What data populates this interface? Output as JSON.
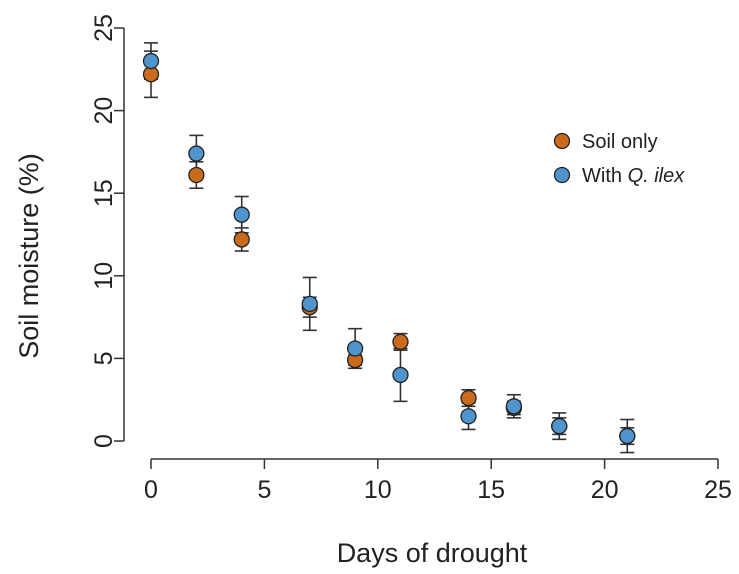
{
  "chart_data": {
    "type": "scatter",
    "title": "",
    "xlabel": "Days of drought",
    "ylabel": "Soil moisture (%)",
    "xlim": [
      0,
      25
    ],
    "ylim": [
      0,
      25
    ],
    "xticks": [
      0,
      5,
      10,
      15,
      20,
      25
    ],
    "yticks": [
      0,
      5,
      10,
      15,
      20,
      25
    ],
    "grid": false,
    "legend_position": "right",
    "series": [
      {
        "name": "Soil only",
        "color": "#c96a1c",
        "points": [
          {
            "x": 0,
            "y": 22.2,
            "err": 1.4
          },
          {
            "x": 2,
            "y": 16.1,
            "err": 0.8
          },
          {
            "x": 4,
            "y": 12.2,
            "err": 0.7
          },
          {
            "x": 7,
            "y": 8.1,
            "err": 0.6
          },
          {
            "x": 9,
            "y": 4.9,
            "err": 0.3
          },
          {
            "x": 11,
            "y": 6.0,
            "err": 0.5
          },
          {
            "x": 14,
            "y": 2.6,
            "err": 0.5
          },
          {
            "x": 16,
            "y": 2.0,
            "err": 0.4
          },
          {
            "x": 18,
            "y": 0.9,
            "err": 0.5
          },
          {
            "x": 21,
            "y": 0.3,
            "err": 0.5
          }
        ]
      },
      {
        "name": "With Q. ilex",
        "legend_parts": [
          "With ",
          "Q. ilex"
        ],
        "color": "#4f94cd",
        "points": [
          {
            "x": 0,
            "y": 23.0,
            "err": 1.1
          },
          {
            "x": 2,
            "y": 17.4,
            "err": 1.1
          },
          {
            "x": 4,
            "y": 13.7,
            "err": 1.1
          },
          {
            "x": 7,
            "y": 8.3,
            "err": 1.6
          },
          {
            "x": 9,
            "y": 5.6,
            "err": 1.2
          },
          {
            "x": 11,
            "y": 4.0,
            "err": 1.6
          },
          {
            "x": 14,
            "y": 1.5,
            "err": 0.8
          },
          {
            "x": 16,
            "y": 2.1,
            "err": 0.7
          },
          {
            "x": 18,
            "y": 0.9,
            "err": 0.8
          },
          {
            "x": 21,
            "y": 0.3,
            "err": 1.0
          }
        ]
      }
    ]
  }
}
